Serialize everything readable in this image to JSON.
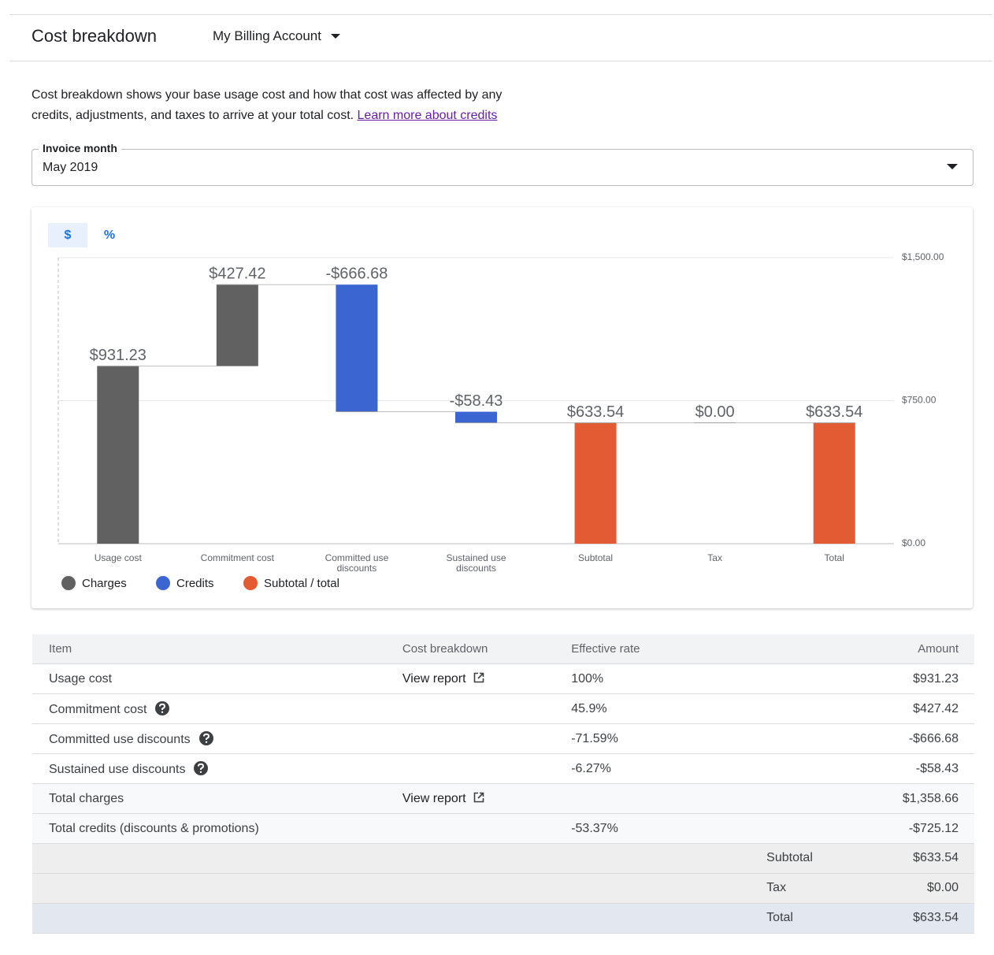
{
  "header": {
    "title": "Cost breakdown",
    "account": "My Billing Account"
  },
  "description": {
    "text": "Cost breakdown shows your base usage cost and how that cost was affected by any credits, adjustments, and taxes to arrive at your total cost.",
    "link": "Learn more about credits"
  },
  "invoice": {
    "label": "Invoice month",
    "value": "May 2019"
  },
  "toggle": [
    "$",
    "%"
  ],
  "chart_data": {
    "type": "waterfall",
    "categories": [
      "Usage cost",
      "Commitment cost",
      "Committed use discounts",
      "Sustained use discounts",
      "Subtotal",
      "Tax",
      "Total"
    ],
    "values": [
      931.23,
      427.42,
      -666.68,
      -58.43,
      633.54,
      0,
      633.54
    ],
    "value_labels": [
      "$931.23",
      "$427.42",
      "-$666.68",
      "-$58.43",
      "$633.54",
      "$0.00",
      "$633.54"
    ],
    "is_total": [
      false,
      false,
      false,
      false,
      true,
      false,
      true
    ],
    "colors": [
      "#616161",
      "#616161",
      "#3b66d2",
      "#3b66d2",
      "#e25b32",
      "#e25b32",
      "#e25b32"
    ],
    "legend": [
      {
        "name": "Charges",
        "color": "#616161"
      },
      {
        "name": "Credits",
        "color": "#3b66d2"
      },
      {
        "name": "Subtotal / total",
        "color": "#e25b32"
      }
    ],
    "ylim": [
      0,
      1500
    ],
    "yticks": [
      {
        "value": 0,
        "label": "$0.00"
      },
      {
        "value": 750,
        "label": "$750.00"
      },
      {
        "value": 1500,
        "label": "$1,500.00"
      }
    ],
    "grid": true
  },
  "table": {
    "headers": [
      "Item",
      "Cost breakdown",
      "Effective rate",
      "Amount"
    ],
    "rows": [
      {
        "item": "Usage cost",
        "report": "View report",
        "rate": "100%",
        "amount": "$931.23"
      },
      {
        "item": "Commitment cost",
        "help": true,
        "rate": "45.9%",
        "amount": "$427.42"
      },
      {
        "item": "Committed use discounts",
        "help": true,
        "rate": "-71.59%",
        "amount": "-$666.68"
      },
      {
        "item": "Sustained use discounts",
        "help": true,
        "rate": "-6.27%",
        "amount": "-$58.43"
      },
      {
        "item": "Total charges",
        "report": "View report",
        "amount": "$1,358.66",
        "shaded": true
      },
      {
        "item": "Total credits (discounts & promotions)",
        "rate": "-53.37%",
        "amount": "-$725.12",
        "shaded": true
      }
    ],
    "summary": [
      {
        "label": "Subtotal",
        "amount": "$633.54",
        "color": "#eeeeee"
      },
      {
        "label": "Tax",
        "amount": "$0.00",
        "color": "#eeeeee"
      },
      {
        "label": "Total",
        "amount": "$633.54",
        "color": "#e3e8f0"
      }
    ]
  }
}
